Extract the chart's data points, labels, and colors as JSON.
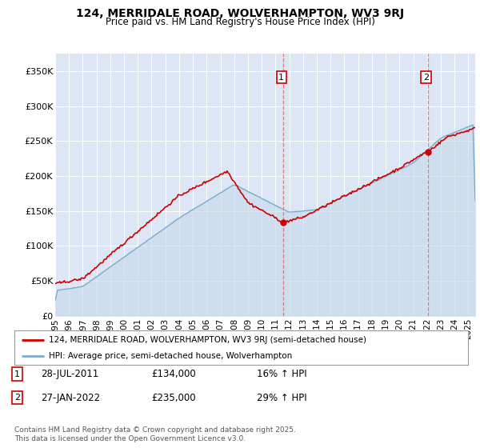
{
  "title_line1": "124, MERRIDALE ROAD, WOLVERHAMPTON, WV3 9RJ",
  "title_line2": "Price paid vs. HM Land Registry's House Price Index (HPI)",
  "plot_bg_color": "#dce6f5",
  "red_color": "#cc0000",
  "blue_color": "#7aadcc",
  "blue_fill_color": "#c5daea",
  "annotation1_date": "28-JUL-2011",
  "annotation1_price": 134000,
  "annotation1_label": "16% ↑ HPI",
  "annotation2_date": "27-JAN-2022",
  "annotation2_price": 235000,
  "annotation2_label": "29% ↑ HPI",
  "legend_label1": "124, MERRIDALE ROAD, WOLVERHAMPTON, WV3 9RJ (semi-detached house)",
  "legend_label2": "HPI: Average price, semi-detached house, Wolverhampton",
  "footer": "Contains HM Land Registry data © Crown copyright and database right 2025.\nThis data is licensed under the Open Government Licence v3.0.",
  "ylabel_ticks": [
    "£0",
    "£50K",
    "£100K",
    "£150K",
    "£200K",
    "£250K",
    "£300K",
    "£350K"
  ],
  "ytick_vals": [
    0,
    50000,
    100000,
    150000,
    200000,
    250000,
    300000,
    350000
  ],
  "ylim": [
    0,
    375000
  ],
  "xlim_start": 1995.0,
  "xlim_end": 2025.5,
  "sale1_x": 2011.58,
  "sale1_y": 134000,
  "sale2_x": 2022.08,
  "sale2_y": 235000
}
